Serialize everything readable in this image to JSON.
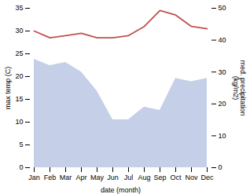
{
  "chart_data": {
    "type": "line",
    "categories": [
      "Jan",
      "Feb",
      "Mar",
      "Apr",
      "May",
      "Jun",
      "Jul",
      "Aug",
      "Sep",
      "Oct",
      "Nov",
      "Dec"
    ],
    "xlabel": "date (month)",
    "ylabel": "max temp (C)",
    "y2label": "med. precipitation\n(kg/m2)",
    "ylim": [
      0,
      35
    ],
    "yticks": [
      0,
      5,
      10,
      15,
      20,
      25,
      30,
      35
    ],
    "y2lim": [
      0,
      50
    ],
    "y2ticks": [
      0,
      10,
      20,
      30,
      40,
      50
    ],
    "grid": false,
    "series": [
      {
        "type": "area",
        "axis": "y2",
        "color": "#c5cfe8",
        "values": [
          34,
          32,
          33,
          30,
          24,
          15,
          15,
          19,
          18,
          28,
          27,
          28
        ]
      },
      {
        "type": "line",
        "color": "#c0504d",
        "values": [
          30.0,
          28.5,
          29.0,
          29.5,
          28.5,
          28.5,
          29.0,
          31.0,
          34.5,
          33.5,
          31.0,
          30.5
        ]
      }
    ]
  }
}
